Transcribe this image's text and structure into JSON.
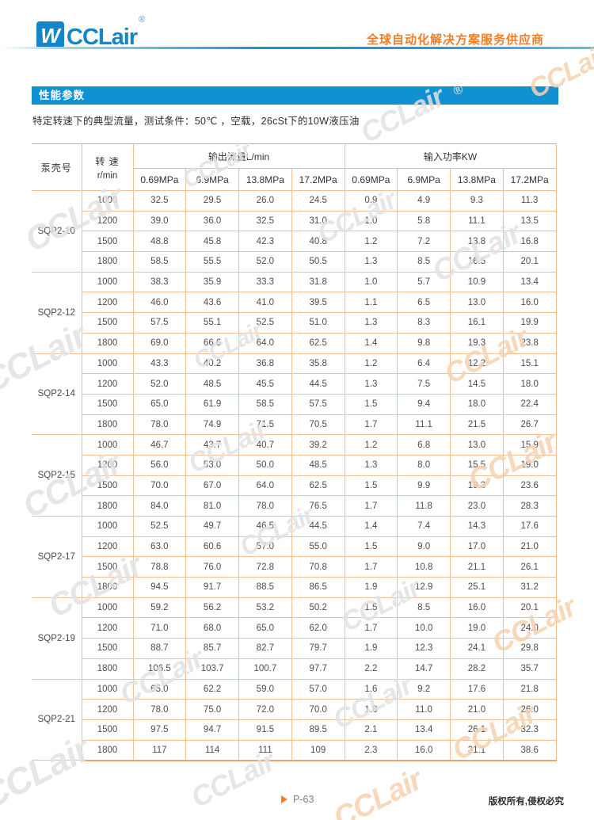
{
  "header": {
    "logo_mark": "W",
    "logo_text": "CCLair",
    "registered": "®",
    "tagline": "全球自动化解决方案服务供应商"
  },
  "section_title": "性能参数",
  "intro_text": "特定转速下的典型流量，测试条件：50℃ ，空载，26cSt下的10W液压油",
  "table": {
    "pump_header": "泵壳号",
    "speed_header_line1": "转 速",
    "speed_header_line2": "r/min",
    "flow_group_header": "输出流量L/min",
    "power_group_header": "输入功率KW",
    "pressures": [
      "0.69MPa",
      "6.9MPa",
      "13.8MPa",
      "17.2MPa"
    ],
    "groups": [
      {
        "model": "SQP2-10",
        "rows": [
          {
            "speed": "1000",
            "values": [
              "32.5",
              "29.5",
              "26.0",
              "24.5",
              "0.9",
              "4.9",
              "9.3",
              "11.3"
            ]
          },
          {
            "speed": "1200",
            "values": [
              "39.0",
              "36.0",
              "32.5",
              "31.0",
              "1.0",
              "5.8",
              "11.1",
              "13.5"
            ]
          },
          {
            "speed": "1500",
            "values": [
              "48.8",
              "45.8",
              "42.3",
              "40.8",
              "1.2",
              "7.2",
              "13.8",
              "16.8"
            ]
          },
          {
            "speed": "1800",
            "values": [
              "58.5",
              "55.5",
              "52.0",
              "50.5",
              "1.3",
              "8.5",
              "16.5",
              "20.1"
            ]
          }
        ]
      },
      {
        "model": "SQP2-12",
        "rows": [
          {
            "speed": "1000",
            "values": [
              "38.3",
              "35.9",
              "33.3",
              "31.8",
              "1.0",
              "5.7",
              "10.9",
              "13.4"
            ]
          },
          {
            "speed": "1200",
            "values": [
              "46.0",
              "43.6",
              "41.0",
              "39.5",
              "1.1",
              "6.5",
              "13.0",
              "16.0"
            ]
          },
          {
            "speed": "1500",
            "values": [
              "57.5",
              "55.1",
              "52.5",
              "51.0",
              "1.3",
              "8.3",
              "16.1",
              "19.9"
            ]
          },
          {
            "speed": "1800",
            "values": [
              "69.0",
              "66.6",
              "64.0",
              "62.5",
              "1.4",
              "9.8",
              "19.3",
              "23.8"
            ]
          }
        ]
      },
      {
        "model": "SQP2-14",
        "rows": [
          {
            "speed": "1000",
            "values": [
              "43.3",
              "40.2",
              "36.8",
              "35.8",
              "1.2",
              "6.4",
              "12.2",
              "15.1"
            ]
          },
          {
            "speed": "1200",
            "values": [
              "52.0",
              "48.5",
              "45.5",
              "44.5",
              "1.3",
              "7.5",
              "14.5",
              "18.0"
            ]
          },
          {
            "speed": "1500",
            "values": [
              "65.0",
              "61.9",
              "58.5",
              "57.5",
              "1.5",
              "9.4",
              "18.0",
              "22.4"
            ]
          },
          {
            "speed": "1800",
            "values": [
              "78.0",
              "74.9",
              "71.5",
              "70.5",
              "1.7",
              "11.1",
              "21.5",
              "26.7"
            ]
          }
        ]
      },
      {
        "model": "SQP2-15",
        "rows": [
          {
            "speed": "1000",
            "values": [
              "46.7",
              "43.7",
              "40.7",
              "39.2",
              "1.2",
              "6.8",
              "13.0",
              "15.9"
            ]
          },
          {
            "speed": "1200",
            "values": [
              "56.0",
              "53.0",
              "50.0",
              "48.5",
              "1.3",
              "8.0",
              "15.5",
              "19.0"
            ]
          },
          {
            "speed": "1500",
            "values": [
              "70.0",
              "67.0",
              "64.0",
              "62.5",
              "1.5",
              "9.9",
              "19.3",
              "23.6"
            ]
          },
          {
            "speed": "1800",
            "values": [
              "84.0",
              "81.0",
              "78.0",
              "76.5",
              "1.7",
              "11.8",
              "23.0",
              "28.3"
            ]
          }
        ]
      },
      {
        "model": "SQP2-17",
        "rows": [
          {
            "speed": "1000",
            "values": [
              "52.5",
              "49.7",
              "46.5",
              "44.5",
              "1.4",
              "7.4",
              "14.3",
              "17.6"
            ]
          },
          {
            "speed": "1200",
            "values": [
              "63.0",
              "60.6",
              "57.0",
              "55.0",
              "1.5",
              "9.0",
              "17.0",
              "21.0"
            ]
          },
          {
            "speed": "1500",
            "values": [
              "78.8",
              "76.0",
              "72.8",
              "70.8",
              "1.7",
              "10.8",
              "21.1",
              "26.1"
            ]
          },
          {
            "speed": "1800",
            "values": [
              "94.5",
              "91.7",
              "88.5",
              "86.5",
              "1.9",
              "12.9",
              "25.1",
              "31.2"
            ]
          }
        ]
      },
      {
        "model": "SQP2-19",
        "rows": [
          {
            "speed": "1000",
            "values": [
              "59.2",
              "56.2",
              "53.2",
              "50.2",
              "1.5",
              "8.5",
              "16.0",
              "20.1"
            ]
          },
          {
            "speed": "1200",
            "values": [
              "71.0",
              "68.0",
              "65.0",
              "62.0",
              "1.7",
              "10.0",
              "19.0",
              "24.0"
            ]
          },
          {
            "speed": "1500",
            "values": [
              "88.7",
              "85.7",
              "82.7",
              "79.7",
              "1.9",
              "12.3",
              "24.1",
              "29.8"
            ]
          },
          {
            "speed": "1800",
            "values": [
              "106.5",
              "103.7",
              "100.7",
              "97.7",
              "2.2",
              "14.7",
              "28.2",
              "35.7"
            ]
          }
        ]
      },
      {
        "model": "SQP2-21",
        "rows": [
          {
            "speed": "1000",
            "values": [
              "65.0",
              "62.2",
              "59.0",
              "57.0",
              "1.6",
              "9.2",
              "17.6",
              "21.8"
            ]
          },
          {
            "speed": "1200",
            "values": [
              "78.0",
              "75.0",
              "72.0",
              "70.0",
              "1.8",
              "11.0",
              "21.0",
              "26.0"
            ]
          },
          {
            "speed": "1500",
            "values": [
              "97.5",
              "94.7",
              "91.5",
              "89.5",
              "2.1",
              "13.4",
              "26.1",
              "32.3"
            ]
          },
          {
            "speed": "1800",
            "values": [
              "117",
              "114",
              "111",
              "109",
              "2.3",
              "16.0",
              "31.1",
              "38.6"
            ]
          }
        ]
      }
    ]
  },
  "footer": {
    "page_number": "P-63",
    "copyright": "版权所有,侵权必究"
  },
  "watermark": {
    "text": "CCLair",
    "registered": "®"
  },
  "colors": {
    "accent_blue": "#1191d3",
    "logo_blue": "#1585c9",
    "accent_orange": "#f07d26",
    "table_line": "#f5bd94"
  }
}
